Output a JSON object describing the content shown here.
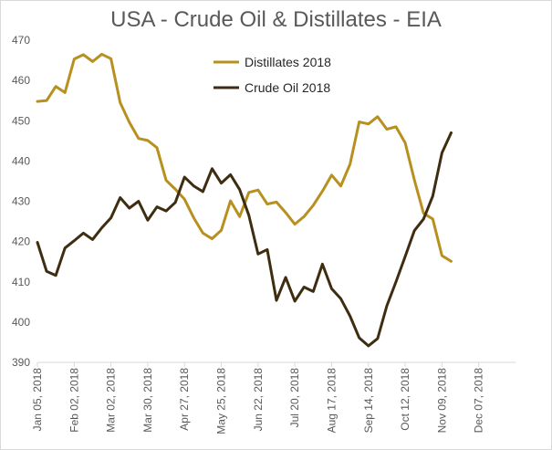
{
  "chart_data": {
    "type": "line",
    "title": "USA - Crude Oil & Distillates - EIA",
    "xlabel": "",
    "ylabel": "",
    "ylim": [
      390,
      470
    ],
    "yticks": [
      390,
      400,
      410,
      420,
      430,
      440,
      450,
      460,
      470
    ],
    "xlim_weeks": [
      0,
      52
    ],
    "xticks": [
      {
        "week": 0,
        "label": "Jan 05, 2018"
      },
      {
        "week": 4,
        "label": "Feb 02, 2018"
      },
      {
        "week": 8,
        "label": "Mar 02, 2018"
      },
      {
        "week": 12,
        "label": "Mar 30, 2018"
      },
      {
        "week": 16,
        "label": "Apr 27, 2018"
      },
      {
        "week": 20,
        "label": "May 25, 2018"
      },
      {
        "week": 24,
        "label": "Jun 22, 2018"
      },
      {
        "week": 28,
        "label": "Jul 20, 2018"
      },
      {
        "week": 32,
        "label": "Aug 17, 2018"
      },
      {
        "week": 36,
        "label": "Sep 14, 2018"
      },
      {
        "week": 40,
        "label": "Oct 12, 2018"
      },
      {
        "week": 44,
        "label": "Nov 09, 2018"
      },
      {
        "week": 48,
        "label": "Dec 07, 2018"
      }
    ],
    "legend_position": "top-center",
    "series": [
      {
        "name": "Distillates 2018",
        "color": "#b8901f",
        "values": [
          454.8,
          455.0,
          458.5,
          457.0,
          465.3,
          466.4,
          464.7,
          466.5,
          465.4,
          454.5,
          449.6,
          445.6,
          445.1,
          443.3,
          435.2,
          433.0,
          430.5,
          425.9,
          422.1,
          420.7,
          422.8,
          430.1,
          426.2,
          432.2,
          432.8,
          429.3,
          429.8,
          427.2,
          424.3,
          426.2,
          429.0,
          432.5,
          436.5,
          433.8,
          439.2,
          449.7,
          449.2,
          451.0,
          447.9,
          448.5,
          444.5,
          435.3,
          427.0,
          425.6,
          416.5,
          415.1
        ]
      },
      {
        "name": "Crude Oil 2018",
        "color": "#3e2d10",
        "values": [
          419.8,
          412.6,
          411.6,
          418.4,
          420.2,
          422.1,
          420.5,
          423.4,
          425.9,
          430.9,
          428.3,
          430.0,
          425.3,
          428.6,
          427.6,
          429.7,
          436.0,
          433.8,
          432.4,
          438.1,
          434.5,
          436.6,
          432.9,
          426.5,
          416.9,
          418.0,
          405.4,
          411.1,
          405.2,
          408.7,
          407.6,
          414.4,
          408.3,
          405.8,
          401.5,
          396.1,
          394.1,
          395.9,
          404.0,
          410.0,
          416.3,
          422.7,
          425.6,
          431.3,
          442.0,
          447.0
        ]
      }
    ]
  }
}
